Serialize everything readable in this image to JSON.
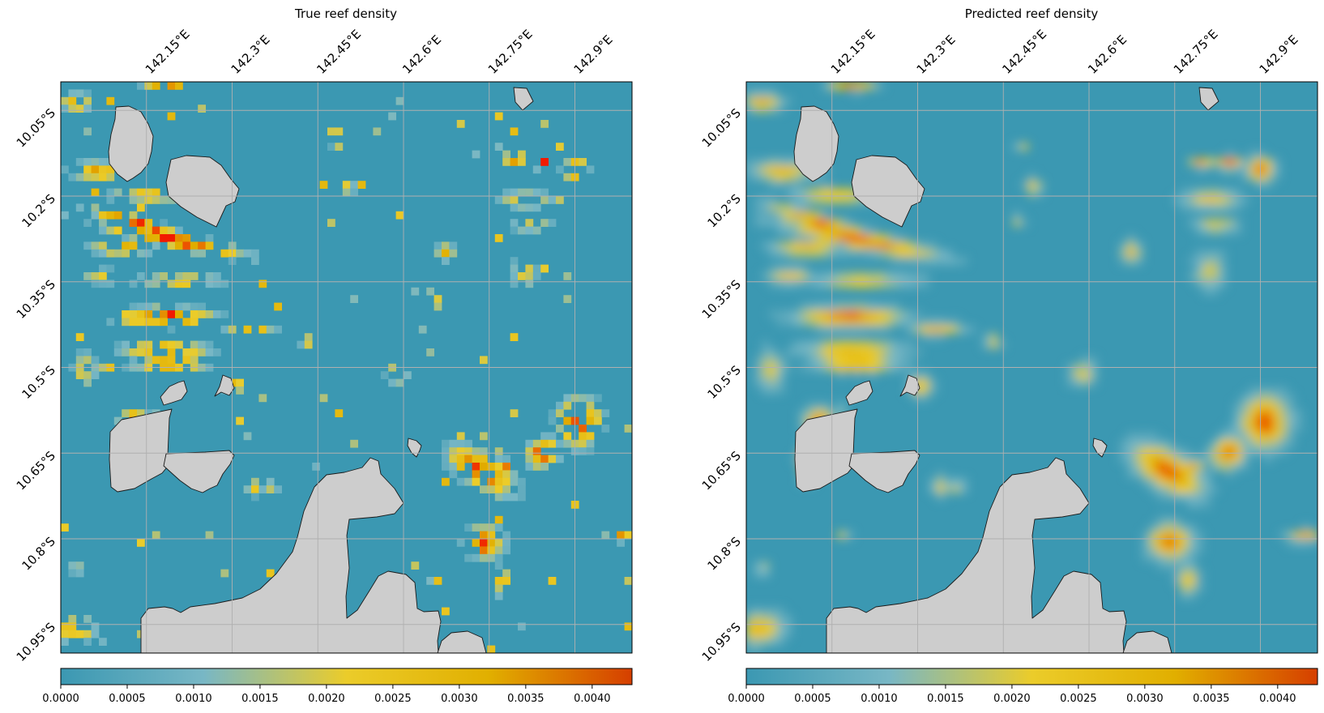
{
  "chart_data": [
    {
      "type": "heatmap",
      "title": "True reef density",
      "x_ticks": [
        "142.15°E",
        "142.3°E",
        "142.45°E",
        "142.6°E",
        "142.75°E",
        "142.9°E"
      ],
      "y_ticks": [
        "10.05°S",
        "10.2°S",
        "10.35°S",
        "10.5°S",
        "10.65°S",
        "10.8°S",
        "10.95°S"
      ],
      "x_range_deg": [
        142.0,
        143.0
      ],
      "y_range_deg": [
        -11.0,
        -10.0
      ],
      "grid": true,
      "colorbar": {
        "range": [
          0,
          0.0043
        ],
        "ticks": [
          "0.0000",
          "0.0005",
          "0.0010",
          "0.0015",
          "0.0020",
          "0.0025",
          "0.0030",
          "0.0035",
          "0.0040"
        ],
        "colors": [
          "#3b98b2",
          "#78b7c5",
          "#ebcc2a",
          "#e1af00",
          "#f21a00"
        ]
      },
      "hotspots": [
        {
          "lon": 142.24,
          "lat": -10.3,
          "value": 0.0042
        },
        {
          "lon": 142.18,
          "lat": -10.42,
          "value": 0.004
        },
        {
          "lon": 142.91,
          "lat": -10.59,
          "value": 0.0041
        },
        {
          "lon": 142.73,
          "lat": -10.7,
          "value": 0.004
        },
        {
          "lon": 142.82,
          "lat": -10.66,
          "value": 0.0039
        },
        {
          "lon": 142.9,
          "lat": -10.14,
          "value": 0.004
        },
        {
          "lon": 142.75,
          "lat": -10.82,
          "value": 0.0038
        }
      ]
    },
    {
      "type": "heatmap",
      "title": "Predicted reef density",
      "x_ticks": [
        "142.15°E",
        "142.3°E",
        "142.45°E",
        "142.6°E",
        "142.75°E",
        "142.9°E"
      ],
      "y_ticks": [
        "10.05°S",
        "10.2°S",
        "10.35°S",
        "10.5°S",
        "10.65°S",
        "10.8°S",
        "10.95°S"
      ],
      "x_range_deg": [
        142.0,
        143.0
      ],
      "y_range_deg": [
        -11.0,
        -10.0
      ],
      "grid": true,
      "colorbar": {
        "range": [
          0,
          0.0043
        ],
        "ticks": [
          "0.0000",
          "0.0005",
          "0.0010",
          "0.0015",
          "0.0020",
          "0.0025",
          "0.0030",
          "0.0035",
          "0.0040"
        ],
        "colors": [
          "#3b98b2",
          "#78b7c5",
          "#ebcc2a",
          "#e1af00",
          "#f21a00"
        ]
      },
      "hotspots": [
        {
          "lon": 142.24,
          "lat": -10.3,
          "value": 0.0036
        },
        {
          "lon": 142.91,
          "lat": -10.59,
          "value": 0.0037
        },
        {
          "lon": 142.73,
          "lat": -10.7,
          "value": 0.0033
        },
        {
          "lon": 142.82,
          "lat": -10.66,
          "value": 0.0034
        },
        {
          "lon": 142.9,
          "lat": -10.14,
          "value": 0.0035
        },
        {
          "lon": 142.75,
          "lat": -10.82,
          "value": 0.0034
        }
      ]
    }
  ]
}
